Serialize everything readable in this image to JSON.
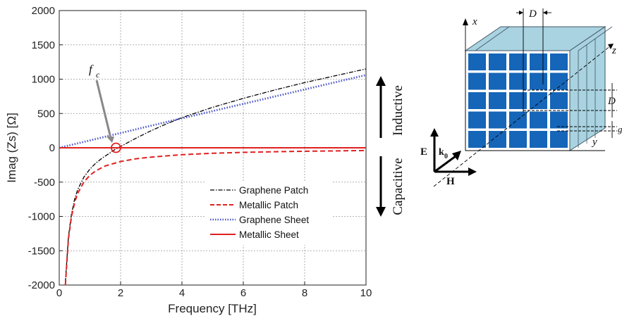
{
  "chart_data": {
    "type": "line",
    "xlabel": "Frequency [THz]",
    "ylabel": "Imag (Zs) [Ω]",
    "xlim": [
      0,
      10
    ],
    "ylim": [
      -2000,
      2000
    ],
    "xticks": [
      "0",
      "2",
      "4",
      "6",
      "8",
      "10"
    ],
    "yticks": [
      "-2000",
      "-1500",
      "-1000",
      "-500",
      "0",
      "500",
      "1000",
      "1500",
      "2000"
    ],
    "grid": true,
    "legend_position": "lower-center",
    "series": [
      {
        "name": "Graphene Patch",
        "color": "#000000",
        "dash": "dashdot",
        "x": [
          0.2,
          0.3,
          0.4,
          0.5,
          0.6,
          0.8,
          1.0,
          1.2,
          1.4,
          1.6,
          1.8,
          2.0,
          2.5,
          3.0,
          3.5,
          4.0,
          5.0,
          6.0,
          7.0,
          8.0,
          9.0,
          10.0
        ],
        "y": [
          -1960,
          -1300,
          -960,
          -750,
          -610,
          -430,
          -310,
          -220,
          -150,
          -90,
          -30,
          20,
          140,
          250,
          350,
          440,
          590,
          720,
          840,
          950,
          1050,
          1150
        ]
      },
      {
        "name": "Metallic Patch",
        "color": "#e02020",
        "dash": "dashed",
        "x": [
          0.2,
          0.3,
          0.4,
          0.5,
          0.6,
          0.8,
          1.0,
          1.2,
          1.5,
          2.0,
          2.5,
          3.0,
          4.0,
          5.0,
          6.0,
          7.0,
          8.0,
          9.0,
          10.0
        ],
        "y": [
          -2000,
          -1330,
          -1000,
          -800,
          -665,
          -500,
          -400,
          -333,
          -265,
          -200,
          -160,
          -135,
          -100,
          -80,
          -67,
          -57,
          -50,
          -45,
          -40
        ]
      },
      {
        "name": "Graphene Sheet",
        "color": "#4a55c8",
        "dash": "dotted",
        "x": [
          0,
          2,
          4,
          6,
          8,
          10
        ],
        "y": [
          0,
          215,
          430,
          640,
          850,
          1060
        ]
      },
      {
        "name": "Metallic Sheet",
        "color": "#e02020",
        "dash": "solid",
        "x": [
          0,
          10
        ],
        "y": [
          0,
          0
        ]
      }
    ],
    "annotations": {
      "fc_label": "f",
      "fc_sub": "c",
      "fc_point": [
        1.85,
        0
      ],
      "inductive": "Inductive",
      "capacitive": "Capacitive"
    }
  },
  "diagram": {
    "x_label": "x",
    "y_label": "y",
    "z_label": "z",
    "D_label": "D",
    "D_label_2": "D",
    "gap_label": "g",
    "E_label": "E",
    "H_label": "H",
    "k_label": "k",
    "k_sub": "0",
    "cell_color": "#1565b8",
    "box_color": "#a9d3e0"
  }
}
